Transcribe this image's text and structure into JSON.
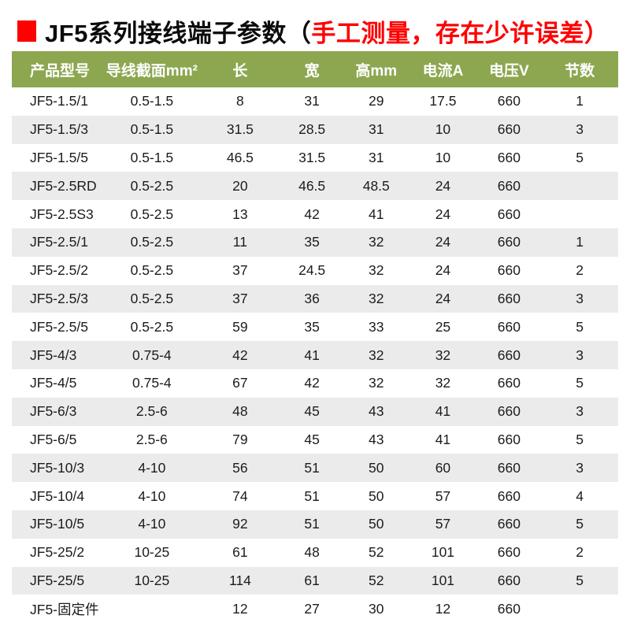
{
  "title": {
    "main": "JF5系列接线端子参数",
    "paren_open": "（",
    "note": "手工测量，存在少许误差）"
  },
  "colors": {
    "header_green": "#8ca750",
    "stripe_gray": "#ebebeb",
    "accent_red": "#fe0000",
    "text": "#1c1c1c"
  },
  "table": {
    "columns": [
      "产品型号",
      "导线截面mm²",
      "长",
      "宽",
      "高mm",
      "电流A",
      "电压V",
      "节数"
    ],
    "rows": [
      [
        "JF5-1.5/1",
        "0.5-1.5",
        "8",
        "31",
        "29",
        "17.5",
        "660",
        "1"
      ],
      [
        "JF5-1.5/3",
        "0.5-1.5",
        "31.5",
        "28.5",
        "31",
        "10",
        "660",
        "3"
      ],
      [
        "JF5-1.5/5",
        "0.5-1.5",
        "46.5",
        "31.5",
        "31",
        "10",
        "660",
        "5"
      ],
      [
        "JF5-2.5RD",
        "0.5-2.5",
        "20",
        "46.5",
        "48.5",
        "24",
        "660",
        ""
      ],
      [
        "JF5-2.5S3",
        "0.5-2.5",
        "13",
        "42",
        "41",
        "24",
        "660",
        ""
      ],
      [
        "JF5-2.5/1",
        "0.5-2.5",
        "11",
        "35",
        "32",
        "24",
        "660",
        "1"
      ],
      [
        "JF5-2.5/2",
        "0.5-2.5",
        "37",
        "24.5",
        "32",
        "24",
        "660",
        "2"
      ],
      [
        "JF5-2.5/3",
        "0.5-2.5",
        "37",
        "36",
        "32",
        "24",
        "660",
        "3"
      ],
      [
        "JF5-2.5/5",
        "0.5-2.5",
        "59",
        "35",
        "33",
        "25",
        "660",
        "5"
      ],
      [
        "JF5-4/3",
        "0.75-4",
        "42",
        "41",
        "32",
        "32",
        "660",
        "3"
      ],
      [
        "JF5-4/5",
        "0.75-4",
        "67",
        "42",
        "32",
        "32",
        "660",
        "5"
      ],
      [
        "JF5-6/3",
        "2.5-6",
        "48",
        "45",
        "43",
        "41",
        "660",
        "3"
      ],
      [
        "JF5-6/5",
        "2.5-6",
        "79",
        "45",
        "43",
        "41",
        "660",
        "5"
      ],
      [
        "JF5-10/3",
        "4-10",
        "56",
        "51",
        "50",
        "60",
        "660",
        "3"
      ],
      [
        "JF5-10/4",
        "4-10",
        "74",
        "51",
        "50",
        "57",
        "660",
        "4"
      ],
      [
        "JF5-10/5",
        "4-10",
        "92",
        "51",
        "50",
        "57",
        "660",
        "5"
      ],
      [
        "JF5-25/2",
        "10-25",
        "61",
        "48",
        "52",
        "101",
        "660",
        "2"
      ],
      [
        "JF5-25/5",
        "10-25",
        "114",
        "61",
        "52",
        "101",
        "660",
        "5"
      ],
      [
        "JF5-固定件",
        "",
        "12",
        "27",
        "30",
        "12",
        "660",
        ""
      ]
    ]
  }
}
